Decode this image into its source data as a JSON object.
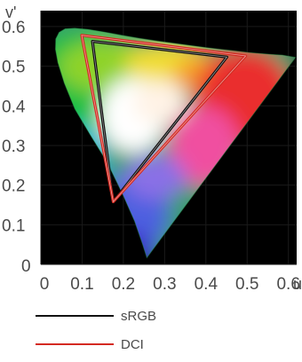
{
  "chart_data": {
    "type": "chromaticity-diagram",
    "xlabel": "u'",
    "ylabel": "v'",
    "x_ticks": [
      "0",
      "0.1",
      "0.2",
      "0.3",
      "0.4",
      "0.5",
      "0.6"
    ],
    "y_ticks": [
      "0",
      "0.1",
      "0.2",
      "0.3",
      "0.4",
      "0.5",
      "0.6"
    ],
    "xlim": [
      0,
      0.62
    ],
    "ylim": [
      0,
      0.64
    ],
    "background": "#000000",
    "spectral_locus": [
      [
        0.2568,
        0.0165
      ],
      [
        0.2463,
        0.0507
      ],
      [
        0.227,
        0.1093
      ],
      [
        0.198,
        0.177
      ],
      [
        0.1606,
        0.2573
      ],
      [
        0.12,
        0.326
      ],
      [
        0.0823,
        0.392
      ],
      [
        0.0567,
        0.4575
      ],
      [
        0.0412,
        0.5091
      ],
      [
        0.0352,
        0.5423
      ],
      [
        0.0359,
        0.5687
      ],
      [
        0.0442,
        0.5853
      ],
      [
        0.0587,
        0.5944
      ],
      [
        0.082,
        0.596
      ],
      [
        0.1138,
        0.5929
      ],
      [
        0.1529,
        0.5864
      ],
      [
        0.1961,
        0.5781
      ],
      [
        0.2401,
        0.5701
      ],
      [
        0.283,
        0.5634
      ],
      [
        0.3241,
        0.5577
      ],
      [
        0.3636,
        0.5521
      ],
      [
        0.4018,
        0.5468
      ],
      [
        0.4387,
        0.5424
      ],
      [
        0.4723,
        0.5385
      ],
      [
        0.5037,
        0.5347
      ],
      [
        0.5292,
        0.5324
      ],
      [
        0.5522,
        0.5303
      ],
      [
        0.5704,
        0.529
      ],
      [
        0.585,
        0.528
      ],
      [
        0.6175,
        0.5223
      ]
    ],
    "gamuts": [
      {
        "name": "sRGB",
        "color": "#111111",
        "points": [
          [
            0.4507,
            0.5229
          ],
          [
            0.125,
            0.5625
          ],
          [
            0.1754,
            0.1579
          ]
        ]
      },
      {
        "name": "DCI",
        "color": "#d42a22",
        "points": [
          [
            0.4964,
            0.5259
          ],
          [
            0.0991,
            0.5781
          ],
          [
            0.1754,
            0.1579
          ]
        ]
      }
    ]
  },
  "legend": {
    "items": [
      {
        "label": "sRGB",
        "color": "#111111"
      },
      {
        "label": "DCI",
        "color": "#d42a22"
      }
    ]
  }
}
